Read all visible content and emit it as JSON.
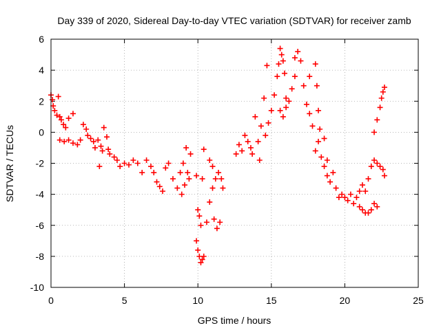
{
  "chart_data": {
    "type": "scatter",
    "title": "Day 339 of 2020, Sidereal Day-to-day VTEC variation (SDTVAR) for receiver zamb",
    "xlabel": "GPS time / hours",
    "ylabel": "SDTVAR / TECUs",
    "xlim": [
      0,
      25
    ],
    "ylim": [
      -10,
      6
    ],
    "xticks": [
      0,
      5,
      10,
      15,
      20,
      25
    ],
    "yticks": [
      -10,
      -8,
      -6,
      -4,
      -2,
      0,
      2,
      4,
      6
    ],
    "grid": true,
    "marker": "+",
    "color": "#ff0000",
    "series": [
      {
        "name": "SDTVAR",
        "points": [
          [
            0.0,
            2.4
          ],
          [
            0.1,
            2.1
          ],
          [
            0.15,
            1.7
          ],
          [
            0.25,
            1.4
          ],
          [
            0.4,
            1.1
          ],
          [
            0.5,
            2.3
          ],
          [
            0.6,
            1.0
          ],
          [
            0.7,
            0.8
          ],
          [
            0.85,
            0.5
          ],
          [
            1.0,
            0.3
          ],
          [
            1.2,
            0.9
          ],
          [
            1.5,
            1.2
          ],
          [
            0.6,
            -0.5
          ],
          [
            0.9,
            -0.6
          ],
          [
            1.2,
            -0.5
          ],
          [
            1.5,
            -0.7
          ],
          [
            1.8,
            -0.8
          ],
          [
            2.0,
            -0.5
          ],
          [
            2.2,
            0.5
          ],
          [
            2.4,
            0.2
          ],
          [
            2.5,
            -0.2
          ],
          [
            2.7,
            -0.4
          ],
          [
            2.9,
            -0.6
          ],
          [
            3.0,
            -1.0
          ],
          [
            3.2,
            -0.5
          ],
          [
            3.4,
            -0.9
          ],
          [
            3.5,
            -1.2
          ],
          [
            3.6,
            0.3
          ],
          [
            3.8,
            -0.3
          ],
          [
            3.9,
            -1.1
          ],
          [
            3.3,
            -2.2
          ],
          [
            4.0,
            -1.4
          ],
          [
            4.3,
            -1.6
          ],
          [
            4.5,
            -1.8
          ],
          [
            4.7,
            -2.2
          ],
          [
            5.0,
            -2.0
          ],
          [
            5.3,
            -2.1
          ],
          [
            5.6,
            -1.8
          ],
          [
            5.9,
            -2.0
          ],
          [
            6.2,
            -2.6
          ],
          [
            6.5,
            -1.8
          ],
          [
            6.8,
            -2.2
          ],
          [
            7.0,
            -2.6
          ],
          [
            7.2,
            -3.2
          ],
          [
            7.4,
            -3.5
          ],
          [
            7.6,
            -3.8
          ],
          [
            7.8,
            -2.3
          ],
          [
            8.0,
            -2.0
          ],
          [
            8.3,
            -3.0
          ],
          [
            8.6,
            -3.6
          ],
          [
            8.8,
            -2.6
          ],
          [
            9.0,
            -2.0
          ],
          [
            9.2,
            -1.0
          ],
          [
            9.4,
            -3.0
          ],
          [
            8.9,
            -4.0
          ],
          [
            9.1,
            -3.4
          ],
          [
            9.3,
            -2.6
          ],
          [
            9.5,
            -1.4
          ],
          [
            9.9,
            -2.8
          ],
          [
            10.0,
            -5.0
          ],
          [
            10.1,
            -5.4
          ],
          [
            10.2,
            -6.0
          ],
          [
            10.3,
            -3.0
          ],
          [
            10.4,
            -1.1
          ],
          [
            9.9,
            -7.0
          ],
          [
            10.0,
            -7.6
          ],
          [
            10.1,
            -8.0
          ],
          [
            10.2,
            -8.4
          ],
          [
            10.3,
            -8.2
          ],
          [
            10.4,
            -8.0
          ],
          [
            10.6,
            -5.8
          ],
          [
            10.8,
            -4.5
          ],
          [
            11.0,
            -3.6
          ],
          [
            11.2,
            -3.0
          ],
          [
            11.4,
            -2.6
          ],
          [
            11.6,
            -3.0
          ],
          [
            10.8,
            -1.8
          ],
          [
            11.0,
            -2.2
          ],
          [
            11.1,
            -5.6
          ],
          [
            11.3,
            -6.2
          ],
          [
            11.5,
            -5.8
          ],
          [
            11.7,
            -3.6
          ],
          [
            12.6,
            -1.4
          ],
          [
            12.8,
            -0.8
          ],
          [
            13.0,
            -1.2
          ],
          [
            13.2,
            -0.2
          ],
          [
            13.4,
            -0.6
          ],
          [
            13.6,
            -1.0
          ],
          [
            13.7,
            -1.4
          ],
          [
            13.9,
            1.0
          ],
          [
            14.1,
            -0.6
          ],
          [
            14.2,
            -1.8
          ],
          [
            14.3,
            0.4
          ],
          [
            14.5,
            2.2
          ],
          [
            14.6,
            -0.2
          ],
          [
            14.7,
            4.3
          ],
          [
            14.8,
            0.6
          ],
          [
            15.0,
            1.4
          ],
          [
            15.2,
            2.4
          ],
          [
            15.4,
            3.6
          ],
          [
            15.5,
            4.4
          ],
          [
            15.6,
            5.4
          ],
          [
            15.7,
            5.0
          ],
          [
            15.8,
            4.6
          ],
          [
            15.9,
            3.8
          ],
          [
            16.0,
            2.2
          ],
          [
            15.6,
            1.4
          ],
          [
            15.8,
            1.0
          ],
          [
            16.0,
            1.6
          ],
          [
            16.2,
            2.0
          ],
          [
            16.4,
            2.8
          ],
          [
            16.6,
            3.6
          ],
          [
            16.6,
            4.8
          ],
          [
            16.8,
            5.2
          ],
          [
            17.0,
            4.6
          ],
          [
            17.2,
            3.0
          ],
          [
            17.4,
            1.8
          ],
          [
            17.6,
            3.6
          ],
          [
            17.6,
            1.2
          ],
          [
            17.8,
            0.4
          ],
          [
            18.0,
            4.4
          ],
          [
            18.1,
            3.0
          ],
          [
            18.2,
            1.4
          ],
          [
            18.3,
            0.2
          ],
          [
            18.0,
            -1.2
          ],
          [
            18.2,
            -0.6
          ],
          [
            18.4,
            -1.6
          ],
          [
            18.6,
            -2.2
          ],
          [
            18.8,
            -2.8
          ],
          [
            19.0,
            -3.2
          ],
          [
            18.6,
            -0.4
          ],
          [
            18.8,
            -1.8
          ],
          [
            19.2,
            -2.6
          ],
          [
            19.4,
            -3.6
          ],
          [
            19.6,
            -4.2
          ],
          [
            19.8,
            -4.0
          ],
          [
            20.0,
            -4.2
          ],
          [
            20.2,
            -4.4
          ],
          [
            20.4,
            -4.0
          ],
          [
            20.6,
            -4.6
          ],
          [
            20.8,
            -4.2
          ],
          [
            21.0,
            -4.8
          ],
          [
            21.2,
            -5.0
          ],
          [
            21.4,
            -5.2
          ],
          [
            21.6,
            -5.2
          ],
          [
            21.8,
            -5.0
          ],
          [
            22.0,
            -4.6
          ],
          [
            22.2,
            -4.8
          ],
          [
            21.0,
            -3.8
          ],
          [
            21.2,
            -3.4
          ],
          [
            21.4,
            -3.8
          ],
          [
            21.6,
            -3.0
          ],
          [
            21.8,
            -2.2
          ],
          [
            22.0,
            -1.8
          ],
          [
            22.2,
            -2.0
          ],
          [
            22.4,
            -2.2
          ],
          [
            22.6,
            -2.4
          ],
          [
            22.7,
            -2.8
          ],
          [
            22.0,
            0.0
          ],
          [
            22.2,
            0.8
          ],
          [
            22.4,
            1.6
          ],
          [
            22.5,
            2.2
          ],
          [
            22.6,
            2.6
          ],
          [
            22.7,
            2.9
          ]
        ]
      }
    ]
  }
}
